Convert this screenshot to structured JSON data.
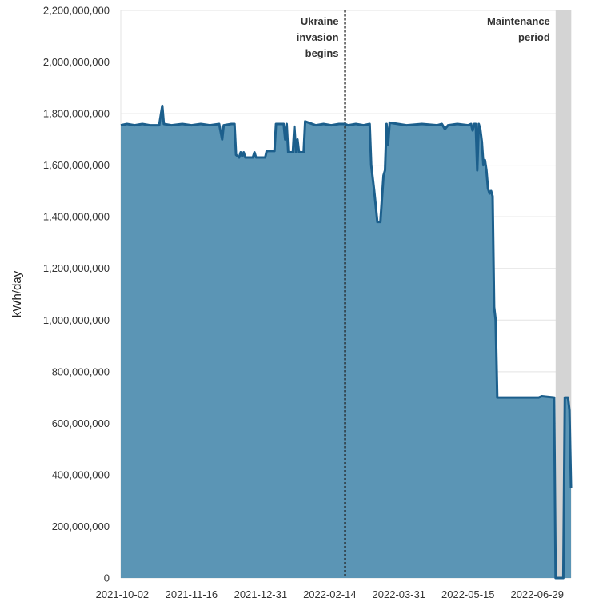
{
  "chart_data": {
    "type": "area",
    "ylabel": "kWh/day",
    "ylim": [
      0,
      2200000000
    ],
    "xlim": [
      "2021-10-01",
      "2022-07-21"
    ],
    "grid": true,
    "colors": {
      "fill": "#5b95b5",
      "line": "#1c5f8c",
      "shade": "#d4d4d4",
      "grid": "#e3e3e3"
    },
    "y_ticks": [
      {
        "value": 0,
        "label": "0"
      },
      {
        "value": 200000000,
        "label": "200,000,000"
      },
      {
        "value": 400000000,
        "label": "400,000,000"
      },
      {
        "value": 600000000,
        "label": "600,000,000"
      },
      {
        "value": 800000000,
        "label": "800,000,000"
      },
      {
        "value": 1000000000,
        "label": "1,000,000,000"
      },
      {
        "value": 1200000000,
        "label": "1,200,000,000"
      },
      {
        "value": 1400000000,
        "label": "1,400,000,000"
      },
      {
        "value": 1600000000,
        "label": "1,600,000,000"
      },
      {
        "value": 1800000000,
        "label": "1,800,000,000"
      },
      {
        "value": 2000000000,
        "label": "2,000,000,000"
      },
      {
        "value": 2200000000,
        "label": "2,200,000,000"
      }
    ],
    "x_ticks": [
      "2021-10-02",
      "2021-11-16",
      "2021-12-31",
      "2022-02-14",
      "2022-03-31",
      "2022-05-15",
      "2022-06-29"
    ],
    "annotations": [
      {
        "kind": "line",
        "date": "2022-02-24",
        "lines": [
          "Ukraine",
          "invasion",
          "begins"
        ]
      },
      {
        "kind": "band",
        "start": "2022-07-11",
        "end": "2022-07-21",
        "lines": [
          "Maintenance",
          "period"
        ]
      }
    ],
    "series": [
      {
        "points": [
          [
            "2021-10-01",
            1755000000
          ],
          [
            "2021-10-05",
            1760000000
          ],
          [
            "2021-10-10",
            1755000000
          ],
          [
            "2021-10-15",
            1760000000
          ],
          [
            "2021-10-20",
            1755000000
          ],
          [
            "2021-10-26",
            1755000000
          ],
          [
            "2021-10-28",
            1830000000
          ],
          [
            "2021-10-29",
            1760000000
          ],
          [
            "2021-11-03",
            1755000000
          ],
          [
            "2021-11-10",
            1760000000
          ],
          [
            "2021-11-16",
            1755000000
          ],
          [
            "2021-11-22",
            1760000000
          ],
          [
            "2021-11-28",
            1755000000
          ],
          [
            "2021-12-04",
            1760000000
          ],
          [
            "2021-12-06",
            1700000000
          ],
          [
            "2021-12-07",
            1755000000
          ],
          [
            "2021-12-12",
            1760000000
          ],
          [
            "2021-12-14",
            1760000000
          ],
          [
            "2021-12-15",
            1640000000
          ],
          [
            "2021-12-17",
            1630000000
          ],
          [
            "2021-12-18",
            1650000000
          ],
          [
            "2021-12-19",
            1635000000
          ],
          [
            "2021-12-20",
            1650000000
          ],
          [
            "2021-12-21",
            1630000000
          ],
          [
            "2021-12-26",
            1630000000
          ],
          [
            "2021-12-27",
            1650000000
          ],
          [
            "2021-12-28",
            1630000000
          ],
          [
            "2022-01-03",
            1630000000
          ],
          [
            "2022-01-04",
            1655000000
          ],
          [
            "2022-01-09",
            1655000000
          ],
          [
            "2022-01-10",
            1760000000
          ],
          [
            "2022-01-15",
            1760000000
          ],
          [
            "2022-01-16",
            1700000000
          ],
          [
            "2022-01-17",
            1760000000
          ],
          [
            "2022-01-18",
            1650000000
          ],
          [
            "2022-01-21",
            1650000000
          ],
          [
            "2022-01-22",
            1750000000
          ],
          [
            "2022-01-23",
            1650000000
          ],
          [
            "2022-01-24",
            1700000000
          ],
          [
            "2022-01-25",
            1650000000
          ],
          [
            "2022-01-28",
            1650000000
          ],
          [
            "2022-01-29",
            1770000000
          ],
          [
            "2022-02-05",
            1755000000
          ],
          [
            "2022-02-10",
            1760000000
          ],
          [
            "2022-02-15",
            1755000000
          ],
          [
            "2022-02-20",
            1760000000
          ],
          [
            "2022-02-24",
            1760000000
          ],
          [
            "2022-02-26",
            1755000000
          ],
          [
            "2022-03-03",
            1760000000
          ],
          [
            "2022-03-08",
            1755000000
          ],
          [
            "2022-03-12",
            1760000000
          ],
          [
            "2022-03-13",
            1600000000
          ],
          [
            "2022-03-15",
            1500000000
          ],
          [
            "2022-03-17",
            1380000000
          ],
          [
            "2022-03-19",
            1380000000
          ],
          [
            "2022-03-21",
            1560000000
          ],
          [
            "2022-03-22",
            1580000000
          ],
          [
            "2022-03-23",
            1760000000
          ],
          [
            "2022-03-24",
            1680000000
          ],
          [
            "2022-03-25",
            1765000000
          ],
          [
            "2022-04-05",
            1755000000
          ],
          [
            "2022-04-15",
            1760000000
          ],
          [
            "2022-04-25",
            1755000000
          ],
          [
            "2022-04-28",
            1760000000
          ],
          [
            "2022-04-30",
            1740000000
          ],
          [
            "2022-05-02",
            1755000000
          ],
          [
            "2022-05-08",
            1760000000
          ],
          [
            "2022-05-15",
            1755000000
          ],
          [
            "2022-05-17",
            1760000000
          ],
          [
            "2022-05-18",
            1735000000
          ],
          [
            "2022-05-19",
            1760000000
          ],
          [
            "2022-05-20",
            1760000000
          ],
          [
            "2022-05-21",
            1580000000
          ],
          [
            "2022-05-22",
            1760000000
          ],
          [
            "2022-05-23",
            1740000000
          ],
          [
            "2022-05-24",
            1690000000
          ],
          [
            "2022-05-25",
            1600000000
          ],
          [
            "2022-05-26",
            1620000000
          ],
          [
            "2022-05-27",
            1580000000
          ],
          [
            "2022-05-28",
            1510000000
          ],
          [
            "2022-05-29",
            1490000000
          ],
          [
            "2022-05-30",
            1500000000
          ],
          [
            "2022-05-31",
            1480000000
          ],
          [
            "2022-06-01",
            1050000000
          ],
          [
            "2022-06-02",
            1000000000
          ],
          [
            "2022-06-03",
            700000000
          ],
          [
            "2022-06-10",
            700000000
          ],
          [
            "2022-06-20",
            700000000
          ],
          [
            "2022-06-30",
            700000000
          ],
          [
            "2022-07-02",
            705000000
          ],
          [
            "2022-07-10",
            700000000
          ],
          [
            "2022-07-11",
            0
          ],
          [
            "2022-07-16",
            0
          ],
          [
            "2022-07-17",
            700000000
          ],
          [
            "2022-07-19",
            700000000
          ],
          [
            "2022-07-20",
            650000000
          ],
          [
            "2022-07-21",
            350000000
          ]
        ]
      }
    ]
  }
}
